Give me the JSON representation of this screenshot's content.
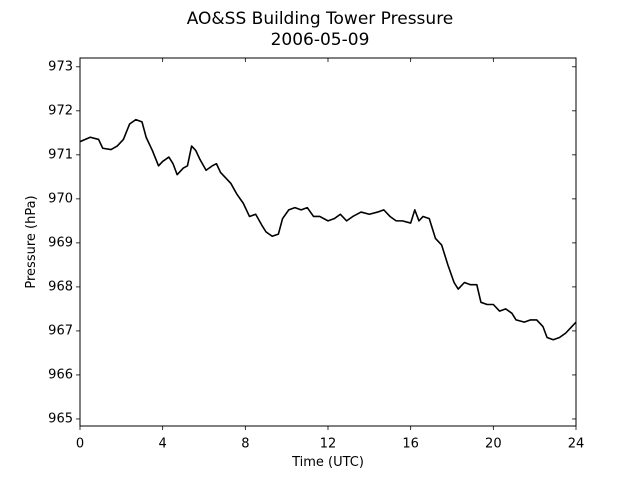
{
  "chart_data": {
    "type": "line",
    "title": "AO&SS Building Tower Pressure",
    "subtitle": "2006-05-09",
    "x_label": "Time (UTC)",
    "y_label": "Pressure (hPa)",
    "color": "#000000",
    "x": [
      0,
      0.5,
      0.9,
      1.1,
      1.5,
      1.8,
      2.1,
      2.4,
      2.7,
      3.0,
      3.2,
      3.5,
      3.8,
      4.0,
      4.3,
      4.5,
      4.7,
      5.0,
      5.2,
      5.4,
      5.6,
      5.8,
      6.1,
      6.4,
      6.6,
      6.8,
      7.0,
      7.3,
      7.6,
      7.9,
      8.2,
      8.5,
      8.8,
      9.0,
      9.3,
      9.6,
      9.8,
      10.1,
      10.4,
      10.7,
      11.0,
      11.3,
      11.6,
      12.0,
      12.3,
      12.6,
      12.9,
      13.2,
      13.6,
      14.0,
      14.4,
      14.7,
      15.0,
      15.3,
      15.6,
      16.0,
      16.2,
      16.4,
      16.6,
      16.9,
      17.2,
      17.5,
      17.8,
      18.1,
      18.3,
      18.6,
      18.9,
      19.2,
      19.4,
      19.7,
      20.0,
      20.3,
      20.6,
      20.9,
      21.1,
      21.5,
      21.8,
      22.1,
      22.4,
      22.6,
      22.9,
      23.2,
      23.5,
      23.8,
      24.0
    ],
    "values": [
      971.3,
      971.4,
      971.35,
      971.15,
      971.12,
      971.2,
      971.35,
      971.7,
      971.8,
      971.75,
      971.4,
      971.1,
      970.75,
      970.85,
      970.95,
      970.8,
      970.55,
      970.7,
      970.75,
      971.2,
      971.1,
      970.9,
      970.65,
      970.75,
      970.8,
      970.6,
      970.5,
      970.35,
      970.1,
      969.9,
      969.6,
      969.65,
      969.4,
      969.25,
      969.15,
      969.2,
      969.55,
      969.75,
      969.8,
      969.75,
      969.8,
      969.6,
      969.6,
      969.5,
      969.55,
      969.65,
      969.5,
      969.6,
      969.7,
      969.65,
      969.7,
      969.75,
      969.6,
      969.5,
      969.5,
      969.45,
      969.75,
      969.5,
      969.6,
      969.55,
      969.1,
      968.95,
      968.5,
      968.1,
      967.95,
      968.1,
      968.05,
      968.05,
      967.65,
      967.6,
      967.6,
      967.45,
      967.5,
      967.4,
      967.25,
      967.2,
      967.25,
      967.25,
      967.1,
      966.85,
      966.8,
      966.85,
      966.95,
      967.1,
      967.2
    ],
    "xlim": [
      0,
      24
    ],
    "xticks": [
      0,
      4,
      8,
      12,
      16,
      20,
      24
    ],
    "ylim": [
      964.84,
      973.2
    ],
    "yticks": [
      965,
      966,
      967,
      968,
      969,
      970,
      971,
      972,
      973
    ],
    "grid": false
  }
}
